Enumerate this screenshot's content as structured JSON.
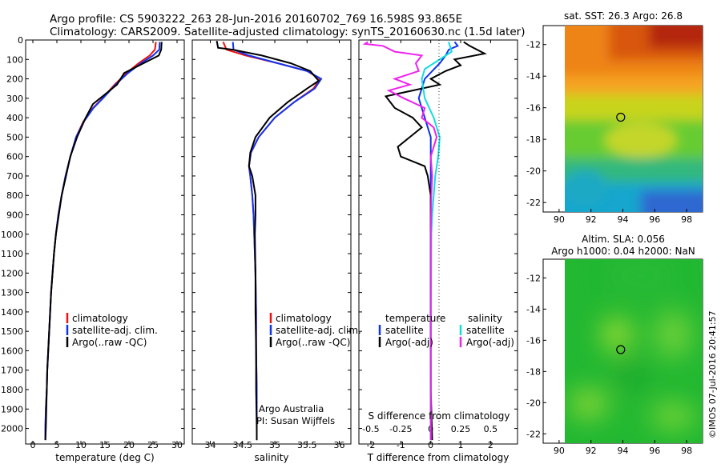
{
  "title": {
    "line1": "Argo profile: CS 5903222_263 28-Jun-2016 20160702_769 16.598S 93.865E",
    "line2": "Climatology: CARS2009. Satellite-adjusted climatology: synTS_20160630.nc (1.5d later)"
  },
  "credit": "©IMOS 07-Jul-2016 20:41:57",
  "colors": {
    "climatology": "#ee1111",
    "satellite": "#1133ee",
    "argo": "#000000",
    "sat_salinity": "#11dddd",
    "argo_adj_salinity": "#ee22ee"
  },
  "chart_data": [
    {
      "type": "line",
      "title": "",
      "xlabel": "temperature (deg C)",
      "ylabel": "",
      "xlim": [
        -1.5,
        31.5
      ],
      "ylim": [
        2080,
        0
      ],
      "xticks": [
        "0",
        "5",
        "10",
        "15",
        "20",
        "25",
        "30"
      ],
      "yticks": [
        "0",
        "100",
        "200",
        "300",
        "400",
        "500",
        "600",
        "700",
        "800",
        "900",
        "1000",
        "1100",
        "1200",
        "1300",
        "1400",
        "1500",
        "1600",
        "1700",
        "1800",
        "1900",
        "2000"
      ],
      "legend": [
        "climatology",
        "satellite-adj. clim.",
        "Argo(..raw -QC)"
      ],
      "series": [
        {
          "name": "climatology",
          "color": "#ee1111",
          "points": [
            [
              25.6,
              10
            ],
            [
              25.4,
              50
            ],
            [
              24.3,
              80
            ],
            [
              22,
              120
            ],
            [
              19.5,
              170
            ],
            [
              17,
              230
            ],
            [
              14.5,
              300
            ],
            [
              12.5,
              350
            ],
            [
              10.5,
              420
            ],
            [
              9,
              500
            ],
            [
              7.8,
              600
            ],
            [
              6.8,
              700
            ],
            [
              6,
              800
            ],
            [
              5.3,
              900
            ],
            [
              4.8,
              1000
            ],
            [
              4.4,
              1100
            ],
            [
              4.1,
              1200
            ],
            [
              3.8,
              1300
            ],
            [
              3.6,
              1400
            ],
            [
              3.4,
              1500
            ],
            [
              3.2,
              1600
            ],
            [
              3,
              1700
            ],
            [
              2.9,
              1800
            ],
            [
              2.7,
              1900
            ],
            [
              2.6,
              2000
            ],
            [
              2.6,
              2060
            ]
          ]
        },
        {
          "name": "satellite-adj. clim.",
          "color": "#1133ee",
          "points": [
            [
              26.4,
              10
            ],
            [
              26.3,
              50
            ],
            [
              25,
              80
            ],
            [
              22.5,
              120
            ],
            [
              19.8,
              170
            ],
            [
              17.2,
              230
            ],
            [
              14.6,
              300
            ],
            [
              12.6,
              350
            ],
            [
              10.6,
              420
            ],
            [
              9,
              500
            ],
            [
              7.8,
              600
            ],
            [
              6.8,
              700
            ],
            [
              6,
              800
            ],
            [
              5.3,
              900
            ],
            [
              4.8,
              1000
            ],
            [
              4.4,
              1100
            ],
            [
              4.1,
              1200
            ],
            [
              3.8,
              1300
            ],
            [
              3.6,
              1400
            ],
            [
              3.4,
              1500
            ],
            [
              3.2,
              1600
            ],
            [
              3,
              1700
            ],
            [
              2.9,
              1800
            ],
            [
              2.7,
              1900
            ],
            [
              2.6,
              2000
            ],
            [
              2.6,
              2060
            ]
          ]
        },
        {
          "name": "Argo(..raw -QC)",
          "color": "#000000",
          "points": [
            [
              26.8,
              10
            ],
            [
              26.7,
              50
            ],
            [
              26.2,
              80
            ],
            [
              23,
              120
            ],
            [
              19,
              170
            ],
            [
              17.5,
              230
            ],
            [
              15,
              280
            ],
            [
              12.5,
              330
            ],
            [
              11,
              400
            ],
            [
              9.2,
              500
            ],
            [
              7.8,
              600
            ],
            [
              6.9,
              700
            ],
            [
              6,
              800
            ],
            [
              5.4,
              900
            ],
            [
              4.8,
              1000
            ],
            [
              4.4,
              1100
            ],
            [
              4.1,
              1200
            ],
            [
              3.8,
              1300
            ],
            [
              3.6,
              1400
            ],
            [
              3.4,
              1500
            ],
            [
              3.2,
              1600
            ],
            [
              3,
              1700
            ],
            [
              2.9,
              1800
            ],
            [
              2.8,
              1900
            ],
            [
              2.7,
              2000
            ],
            [
              2.6,
              2060
            ]
          ]
        }
      ]
    },
    {
      "type": "line",
      "title": "",
      "xlabel": "salinity",
      "ylabel": "",
      "xlim": [
        33.72,
        36.18
      ],
      "ylim": [
        2080,
        0
      ],
      "xticks": [
        "34",
        "34.5",
        "35",
        "35.5",
        "36"
      ],
      "legend": [
        "climatology",
        "satellite-adj. clim.",
        "Argo(..raw -QC)"
      ],
      "annotation": [
        "Argo Australia",
        "PI: Susan Wijffels"
      ],
      "series": [
        {
          "name": "climatology",
          "color": "#ee1111",
          "points": [
            [
              34.2,
              10
            ],
            [
              34.25,
              50
            ],
            [
              34.55,
              80
            ],
            [
              35.05,
              120
            ],
            [
              35.5,
              160
            ],
            [
              35.7,
              200
            ],
            [
              35.6,
              250
            ],
            [
              35.3,
              320
            ],
            [
              35,
              400
            ],
            [
              34.75,
              500
            ],
            [
              34.63,
              580
            ],
            [
              34.6,
              650
            ],
            [
              34.62,
              700
            ],
            [
              34.65,
              800
            ],
            [
              34.67,
              900
            ],
            [
              34.68,
              1000
            ],
            [
              34.7,
              1200
            ],
            [
              34.71,
              1400
            ],
            [
              34.71,
              1600
            ],
            [
              34.72,
              1800
            ],
            [
              34.72,
              2000
            ],
            [
              34.72,
              2060
            ]
          ]
        },
        {
          "name": "satellite-adj. clim.",
          "color": "#1133ee",
          "points": [
            [
              34.35,
              10
            ],
            [
              34.36,
              50
            ],
            [
              34.6,
              80
            ],
            [
              35.05,
              120
            ],
            [
              35.5,
              160
            ],
            [
              35.72,
              200
            ],
            [
              35.62,
              250
            ],
            [
              35.3,
              320
            ],
            [
              35,
              400
            ],
            [
              34.75,
              500
            ],
            [
              34.63,
              580
            ],
            [
              34.6,
              650
            ],
            [
              34.62,
              700
            ],
            [
              34.65,
              800
            ],
            [
              34.67,
              900
            ],
            [
              34.68,
              1000
            ],
            [
              34.7,
              1200
            ],
            [
              34.71,
              1400
            ],
            [
              34.71,
              1600
            ],
            [
              34.72,
              1800
            ],
            [
              34.72,
              2000
            ],
            [
              34.72,
              2060
            ]
          ]
        },
        {
          "name": "Argo(..raw -QC)",
          "color": "#000000",
          "points": [
            [
              34.1,
              5
            ],
            [
              34.12,
              40
            ],
            [
              34.35,
              50
            ],
            [
              34.8,
              80
            ],
            [
              35.25,
              120
            ],
            [
              35.55,
              160
            ],
            [
              35.68,
              210
            ],
            [
              35.5,
              250
            ],
            [
              35.2,
              320
            ],
            [
              34.92,
              400
            ],
            [
              34.7,
              500
            ],
            [
              34.62,
              580
            ],
            [
              34.6,
              650
            ],
            [
              34.65,
              700
            ],
            [
              34.7,
              800
            ],
            [
              34.7,
              900
            ],
            [
              34.69,
              1000
            ],
            [
              34.7,
              1200
            ],
            [
              34.7,
              1400
            ],
            [
              34.71,
              1600
            ],
            [
              34.71,
              1800
            ],
            [
              34.72,
              2000
            ],
            [
              34.72,
              2060
            ]
          ]
        }
      ]
    },
    {
      "type": "line",
      "title": "",
      "xlabel": "T difference from climatology",
      "xlabel_top": "S difference from climatology",
      "ylabel": "",
      "xlim": [
        -2.4,
        2.9
      ],
      "ylim": [
        2080,
        0
      ],
      "xticks": [
        "-2",
        "-1",
        "0",
        "1",
        "2"
      ],
      "xticks_s": [
        "-0.5",
        "-0.25",
        "0",
        "0.25",
        "0.5"
      ],
      "legend_left_title": "temperature",
      "legend_right_title": "salinity",
      "legend": [
        "satellite",
        "Argo(-adj)",
        "satellite",
        "Argo(-adj)"
      ],
      "series": [
        {
          "name": "temperature satellite",
          "color": "#1133ee",
          "points": [
            [
              0.8,
              10
            ],
            [
              0.9,
              30
            ],
            [
              0.6,
              50
            ],
            [
              0.5,
              80
            ],
            [
              0.3,
              120
            ],
            [
              -0.2,
              200
            ],
            [
              -0.4,
              300
            ],
            [
              -0.2,
              400
            ],
            [
              0,
              500
            ],
            [
              0,
              600
            ],
            [
              0,
              800
            ],
            [
              0,
              1000
            ],
            [
              0,
              1400
            ],
            [
              0,
              1800
            ],
            [
              0,
              2060
            ]
          ]
        },
        {
          "name": "temperature Argo(-adj)",
          "color": "#000000",
          "points": [
            [
              1.1,
              10
            ],
            [
              1.3,
              30
            ],
            [
              1.8,
              70
            ],
            [
              0.8,
              100
            ],
            [
              1,
              130
            ],
            [
              0.5,
              160
            ],
            [
              0,
              200
            ],
            [
              0.3,
              230
            ],
            [
              -1.5,
              290
            ],
            [
              -1.2,
              350
            ],
            [
              -0.6,
              400
            ],
            [
              -0.3,
              450
            ],
            [
              -1.1,
              550
            ],
            [
              -1.0,
              600
            ],
            [
              -0.2,
              650
            ],
            [
              -0.1,
              700
            ],
            [
              0,
              800
            ],
            [
              0,
              1000
            ],
            [
              0,
              1400
            ],
            [
              0,
              1800
            ],
            [
              0.05,
              2060
            ]
          ]
        },
        {
          "name": "salinity satellite",
          "color": "#11dddd",
          "points": [
            [
              0.6,
              10
            ],
            [
              0.7,
              60
            ],
            [
              0.4,
              90
            ],
            [
              -0.2,
              150
            ],
            [
              -0.3,
              200
            ],
            [
              -0.2,
              300
            ],
            [
              0.1,
              400
            ],
            [
              0.3,
              500
            ],
            [
              0.25,
              600
            ],
            [
              0.15,
              700
            ],
            [
              0.1,
              800
            ],
            [
              0.05,
              900
            ],
            [
              0.02,
              1000
            ],
            [
              0.01,
              1400
            ],
            [
              0,
              1800
            ],
            [
              0,
              2060
            ]
          ]
        },
        {
          "name": "salinity Argo(-adj)",
          "color": "#ee22ee",
          "points": [
            [
              -2.1,
              10
            ],
            [
              -2.2,
              20
            ],
            [
              -1.6,
              30
            ],
            [
              -1.2,
              60
            ],
            [
              -0.3,
              80
            ],
            [
              -0.5,
              120
            ],
            [
              -0.4,
              160
            ],
            [
              -1.2,
              200
            ],
            [
              -0.7,
              230
            ],
            [
              -1.4,
              260
            ],
            [
              -0.9,
              300
            ],
            [
              -0.2,
              350
            ],
            [
              -0.3,
              400
            ],
            [
              0.1,
              450
            ],
            [
              0.2,
              500
            ],
            [
              0,
              600
            ],
            [
              0.05,
              700
            ],
            [
              0.02,
              800
            ],
            [
              0,
              1000
            ],
            [
              0,
              1400
            ],
            [
              0,
              1800
            ],
            [
              0,
              2060
            ]
          ]
        }
      ]
    },
    {
      "type": "heatmap",
      "title": "sat. SST: 26.3  Argo: 26.8",
      "xlim": [
        89,
        99
      ],
      "ylim": [
        -22.6,
        -10.8
      ],
      "xticks": [
        "90",
        "92",
        "94",
        "96",
        "98"
      ],
      "yticks": [
        "-12",
        "-14",
        "-16",
        "-18",
        "-20",
        "-22"
      ],
      "marker": {
        "lon": 93.865,
        "lat": -16.598
      }
    },
    {
      "type": "heatmap",
      "title": "Altim. SLA: 0.056",
      "subtitle": "Argo h1000: 0.04 h2000: NaN",
      "xlim": [
        89,
        99
      ],
      "ylim": [
        -22.6,
        -10.8
      ],
      "xticks": [
        "90",
        "92",
        "94",
        "96",
        "98"
      ],
      "yticks": [
        "-12",
        "-14",
        "-16",
        "-18",
        "-20",
        "-22"
      ],
      "marker": {
        "lon": 93.865,
        "lat": -16.598
      }
    }
  ]
}
